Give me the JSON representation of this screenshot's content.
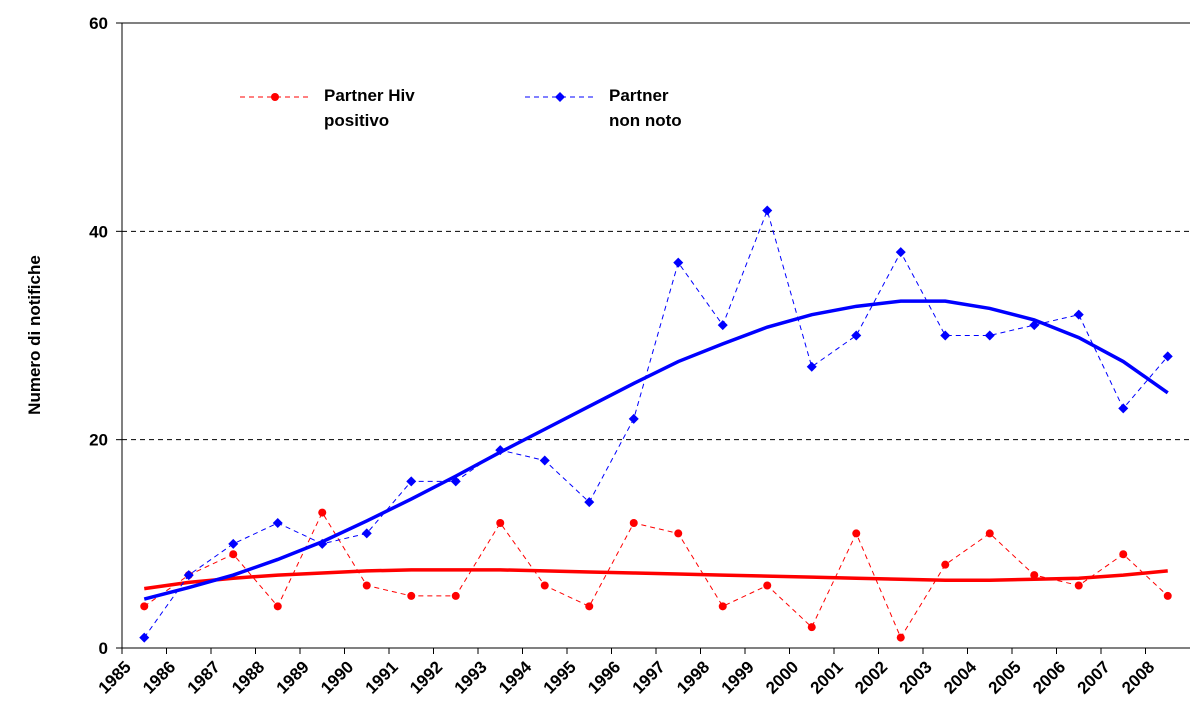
{
  "chart_data": {
    "type": "line",
    "y_label": "Numero di notifiche",
    "categories": [
      "1985",
      "1986",
      "1987",
      "1988",
      "1989",
      "1990",
      "1991",
      "1992",
      "1993",
      "1994",
      "1995",
      "1996",
      "1997",
      "1998",
      "1999",
      "2000",
      "2001",
      "2002",
      "2003",
      "2004",
      "2005",
      "2006",
      "2007",
      "2008"
    ],
    "series": [
      {
        "name": "Partner Hiv\npositivo",
        "color": "#ff0000",
        "marker": "circle",
        "values": [
          4,
          7,
          9,
          4,
          13,
          6,
          5,
          5,
          12,
          6,
          4,
          12,
          11,
          4,
          6,
          2,
          11,
          1,
          8,
          11,
          7,
          6,
          9,
          5
        ],
        "trend": [
          5.7,
          6.3,
          6.7,
          7.0,
          7.2,
          7.4,
          7.5,
          7.5,
          7.5,
          7.4,
          7.3,
          7.2,
          7.1,
          7.0,
          6.9,
          6.8,
          6.7,
          6.6,
          6.5,
          6.5,
          6.6,
          6.7,
          7.0,
          7.4
        ]
      },
      {
        "name": "Partner\nnon noto",
        "color": "#0000ff",
        "marker": "diamond",
        "values": [
          1,
          7,
          10,
          12,
          10,
          11,
          16,
          16,
          19,
          18,
          14,
          22,
          37,
          31,
          42,
          27,
          30,
          38,
          30,
          30,
          31,
          32,
          23,
          28
        ],
        "trend": [
          4.7,
          5.8,
          7.0,
          8.5,
          10.2,
          12.2,
          14.3,
          16.5,
          18.8,
          21.0,
          23.2,
          25.4,
          27.5,
          29.2,
          30.8,
          32.0,
          32.8,
          33.3,
          33.3,
          32.6,
          31.5,
          29.8,
          27.5,
          24.5
        ]
      }
    ],
    "ylim": [
      0,
      60
    ],
    "yticks": [
      0,
      20,
      40,
      60
    ],
    "grid": true
  }
}
